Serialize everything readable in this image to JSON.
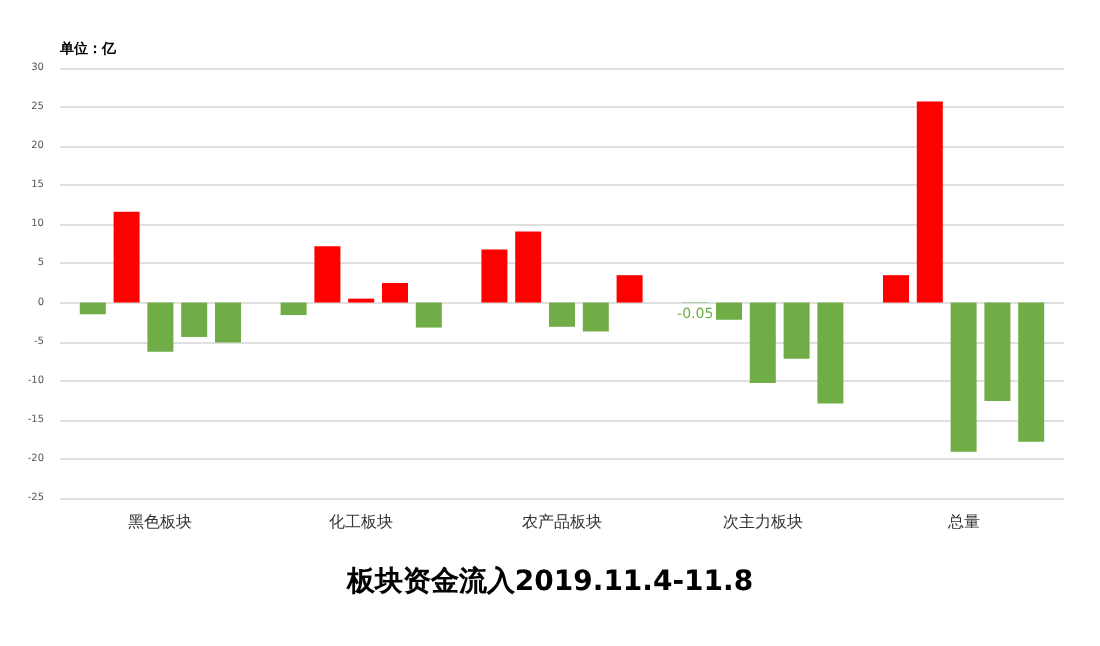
{
  "chart_data": {
    "type": "bar",
    "title": "板块资金流入2019.11.4-11.8",
    "ylabel": "单位：亿",
    "categories": [
      "黑色板块",
      "化工板块",
      "农产品板块",
      "次主力板块",
      "总量"
    ],
    "series": [
      {
        "colors": [
          "#70ad47",
          "#70ad47",
          "#ff0000",
          "#70ad47",
          "#ff0000"
        ],
        "values": [
          -1.5,
          -1.6,
          6.8,
          -0.05,
          3.5
        ],
        "value_labels": [
          null,
          null,
          null,
          "-0.05",
          null
        ]
      },
      {
        "colors": [
          "#ff0000",
          "#ff0000",
          "#ff0000",
          "#70ad47",
          "#ff0000"
        ],
        "values": [
          11.6,
          7.2,
          9.1,
          -2.2,
          25.7
        ]
      },
      {
        "colors": [
          "#70ad47",
          "#ff0000",
          "#70ad47",
          "#70ad47",
          "#70ad47"
        ],
        "values": [
          -6.3,
          0.5,
          -3.1,
          -10.3,
          -19.1
        ]
      },
      {
        "colors": [
          "#70ad47",
          "#ff0000",
          "#70ad47",
          "#70ad47",
          "#70ad47"
        ],
        "values": [
          -4.4,
          2.5,
          -3.7,
          -7.2,
          -12.6
        ]
      },
      {
        "colors": [
          "#70ad47",
          "#70ad47",
          "#ff0000",
          "#70ad47",
          "#70ad47"
        ],
        "values": [
          -5.1,
          -3.2,
          3.5,
          -12.9,
          -17.8
        ]
      }
    ],
    "ylim": [
      -25,
      30
    ],
    "yticks": [
      -25,
      -20,
      -15,
      -10,
      -5,
      0,
      5,
      10,
      15,
      20,
      25,
      30
    ],
    "grid": "y"
  }
}
